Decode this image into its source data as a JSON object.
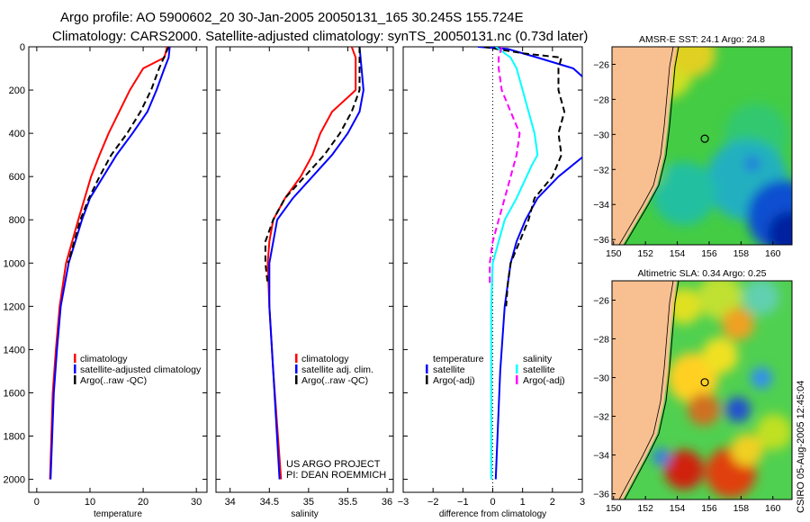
{
  "title_line1": "Argo profile: AO 5900602_20 30-Jan-2005 20050131_165 30.245S 155.724E",
  "title_line2": "Climatology: CARS2000. Satellite-adjusted climatology: synTS_20050131.nc (0.73d later)",
  "side_stamp": "CSIRO 05-Aug-2005 12:45:04",
  "credit": [
    "US ARGO PROJECT",
    "PI: DEAN ROEMMICH"
  ],
  "colors": {
    "red": "#ff0000",
    "blue": "#0000ff",
    "black": "#000000",
    "cyan": "#00ffff",
    "magenta": "#ff00ff",
    "land": "#f8c090"
  },
  "chart_data": [
    {
      "type": "line",
      "xlabel": "temperature",
      "ylabel": "depth",
      "xlim": [
        -1.5,
        32
      ],
      "ylim": [
        2060,
        0
      ],
      "xticks": [
        0,
        10,
        20,
        30
      ],
      "yticks": [
        0,
        200,
        400,
        600,
        800,
        1000,
        1200,
        1400,
        1600,
        1800,
        2000
      ],
      "legend": [
        "climatology",
        "satellite-adjusted climatology",
        "Argo(..raw -QC)"
      ],
      "series": [
        {
          "name": "climatology",
          "color": "red",
          "dash": false,
          "depth": [
            0,
            50,
            100,
            200,
            300,
            400,
            500,
            600,
            700,
            800,
            1000,
            1200,
            1400,
            1600,
            2000
          ],
          "values": [
            24.5,
            24,
            20,
            17.5,
            15.5,
            13.5,
            11.8,
            10.2,
            9,
            7.8,
            5.5,
            4.3,
            3.6,
            3,
            2.5
          ]
        },
        {
          "name": "satellite-adjusted climatology",
          "color": "blue",
          "dash": false,
          "depth": [
            0,
            50,
            100,
            200,
            300,
            400,
            500,
            600,
            700,
            800,
            1000,
            1200,
            1400,
            1600,
            2000
          ],
          "values": [
            25,
            24.8,
            24,
            22.5,
            20.8,
            18,
            15,
            12.5,
            10,
            8.5,
            6,
            4.5,
            3.8,
            3.2,
            2.6
          ]
        },
        {
          "name": "Argo(..raw -QC)",
          "color": "black",
          "dash": true,
          "depth": [
            0,
            100,
            200,
            300,
            400,
            500,
            600,
            700,
            800,
            1000
          ],
          "values": [
            24.8,
            23,
            21.5,
            19.5,
            17,
            14,
            11.8,
            9.8,
            8.2,
            5.9
          ]
        }
      ]
    },
    {
      "type": "line",
      "xlabel": "salinity",
      "ylabel": "depth",
      "xlim": [
        33.82,
        36.08
      ],
      "ylim": [
        2060,
        0
      ],
      "xticks": [
        34,
        34.5,
        35,
        35.5,
        36
      ],
      "yticks": [
        0,
        200,
        400,
        600,
        800,
        1000,
        1200,
        1400,
        1600,
        1800,
        2000
      ],
      "legend": [
        "climatology",
        "satellite adj. clim.",
        "Argo(..raw -QC)"
      ],
      "series": [
        {
          "name": "climatology",
          "color": "red",
          "dash": false,
          "depth": [
            0,
            50,
            200,
            300,
            400,
            500,
            600,
            700,
            800,
            900,
            1000,
            1200,
            1500,
            2000
          ],
          "values": [
            35.55,
            35.6,
            35.6,
            35.3,
            35.15,
            35.05,
            34.9,
            34.7,
            34.55,
            34.5,
            34.48,
            34.5,
            34.55,
            34.65
          ]
        },
        {
          "name": "satellite adj. clim.",
          "color": "blue",
          "dash": false,
          "depth": [
            0,
            200,
            300,
            400,
            500,
            600,
            700,
            800,
            1000,
            1200,
            1500,
            2000
          ],
          "values": [
            35.65,
            35.7,
            35.65,
            35.5,
            35.3,
            35.05,
            34.8,
            34.6,
            34.5,
            34.5,
            34.55,
            34.63
          ]
        },
        {
          "name": "Argo(..raw -QC)",
          "color": "black",
          "dash": true,
          "depth": [
            0,
            200,
            300,
            400,
            500,
            600,
            700,
            800,
            900,
            1000,
            1100
          ],
          "values": [
            35.65,
            35.65,
            35.55,
            35.4,
            35.2,
            34.95,
            34.7,
            34.55,
            34.45,
            34.45,
            34.48
          ]
        }
      ]
    },
    {
      "type": "line",
      "xlabel": "difference from climatology",
      "ylabel": "depth",
      "xlim": [
        -3,
        3
      ],
      "ylim": [
        2060,
        0
      ],
      "xticks": [
        -3,
        -2,
        -1,
        0,
        1,
        2,
        3
      ],
      "yticks": [
        0,
        200,
        400,
        600,
        800,
        1000,
        1200,
        1400,
        1600,
        1800,
        2000
      ],
      "legend_left_title": "temperature",
      "legend_right_title": "salinity",
      "legend": [
        "satellite",
        "Argo(-adj)",
        "satellite",
        "Argo(-adj)"
      ],
      "series": [
        {
          "name": "temperature satellite",
          "color": "blue",
          "dash": false,
          "depth": [
            0,
            10,
            50,
            100,
            150
          ],
          "values": [
            -0.5,
            0.5,
            1.5,
            2.7,
            3.1
          ]
        },
        {
          "name": "temperature satellite deep",
          "color": "blue",
          "dash": false,
          "depth": [
            500,
            600,
            700,
            800,
            900,
            1000,
            1200,
            1500,
            2000
          ],
          "values": [
            3.1,
            2.2,
            1.5,
            1.1,
            0.8,
            0.6,
            0.4,
            0.25,
            0.1
          ]
        },
        {
          "name": "temperature Argo(-adj)",
          "color": "black",
          "dash": true,
          "depth": [
            0,
            30,
            50,
            100,
            200,
            300,
            400,
            500,
            600,
            700,
            800,
            900,
            1000,
            1100,
            1200
          ],
          "values": [
            -0.3,
            1,
            2.3,
            2.2,
            2.2,
            2.4,
            2.2,
            2.3,
            2,
            1.4,
            1.2,
            0.9,
            0.6,
            0.5,
            0.45
          ]
        },
        {
          "name": "salinity satellite",
          "color": "cyan",
          "dash": false,
          "depth": [
            0,
            50,
            100,
            200,
            300,
            400,
            500,
            550,
            700,
            800,
            900,
            1000,
            1200,
            2000
          ],
          "values": [
            0.1,
            0.6,
            0.8,
            1.0,
            1.2,
            1.4,
            1.5,
            1.3,
            0.8,
            0.4,
            0.2,
            0,
            -0.05,
            -0.05
          ]
        },
        {
          "name": "salinity Argo(-adj)",
          "color": "magenta",
          "dash": true,
          "depth": [
            0,
            50,
            100,
            200,
            300,
            400,
            500,
            600,
            700,
            800,
            900,
            1000,
            1100
          ],
          "values": [
            0.3,
            0.2,
            0.2,
            0.3,
            0.6,
            0.9,
            0.8,
            0.6,
            0.4,
            0.2,
            0,
            -0.1,
            -0.1
          ]
        }
      ]
    },
    {
      "type": "heatmap",
      "title": "AMSR-E SST: 24.1 Argo: 24.8",
      "xlim": [
        149.9,
        161.2
      ],
      "ylim": [
        -36.3,
        -25
      ],
      "xticks": [
        150,
        152,
        154,
        156,
        158,
        160
      ],
      "yticks": [
        -26,
        -28,
        -30,
        -32,
        -34,
        -36
      ],
      "marker": [
        155.724,
        -30.245
      ]
    },
    {
      "type": "heatmap",
      "title": "Altimetric SLA: 0.34 Argo: 0.25",
      "xlim": [
        149.9,
        161.2
      ],
      "ylim": [
        -36.3,
        -25
      ],
      "xticks": [
        150,
        152,
        154,
        156,
        158,
        160
      ],
      "yticks": [
        -26,
        -28,
        -30,
        -32,
        -34,
        -36
      ],
      "marker": [
        155.724,
        -30.245
      ]
    }
  ]
}
